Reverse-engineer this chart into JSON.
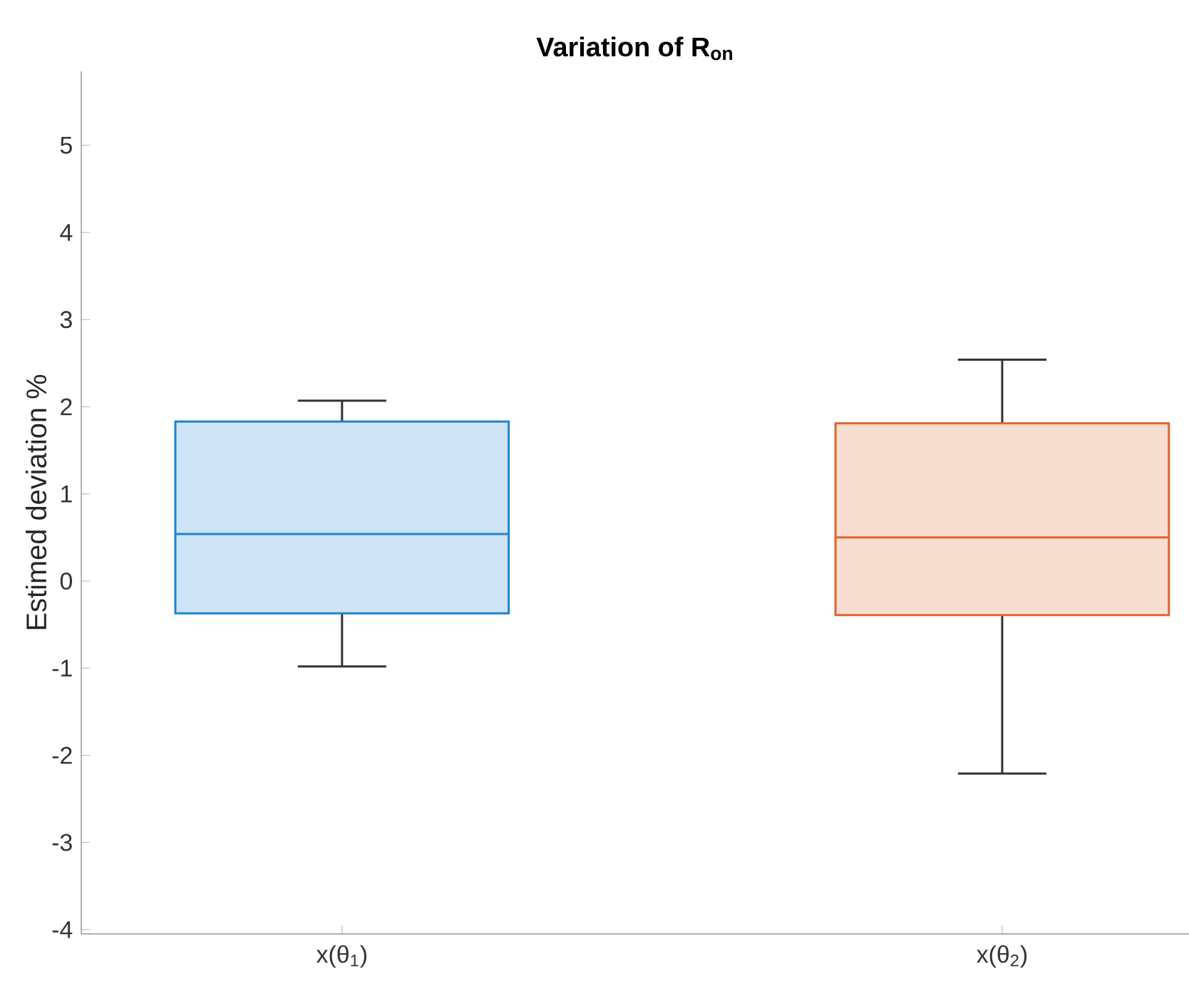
{
  "chart_data": {
    "type": "box",
    "title": "Variation of R$_{on}$",
    "ylabel": "Estimed deviation %",
    "categories": [
      "x(θ$_{1}$)",
      "x(θ$_{2}$)"
    ],
    "boxes": [
      {
        "low": -0.98,
        "q1": -0.37,
        "median": 0.54,
        "q3": 1.83,
        "high": 2.07
      },
      {
        "low": -2.21,
        "q1": -0.39,
        "median": 0.5,
        "q3": 1.81,
        "high": 2.54
      }
    ],
    "colors": [
      "#1f84d0",
      "#e0642c"
    ],
    "ylim": [
      -4.05,
      5.85
    ],
    "yticks": [
      -4,
      -3,
      -2,
      -1,
      0,
      1,
      2,
      3,
      4,
      5
    ],
    "grid": false
  }
}
